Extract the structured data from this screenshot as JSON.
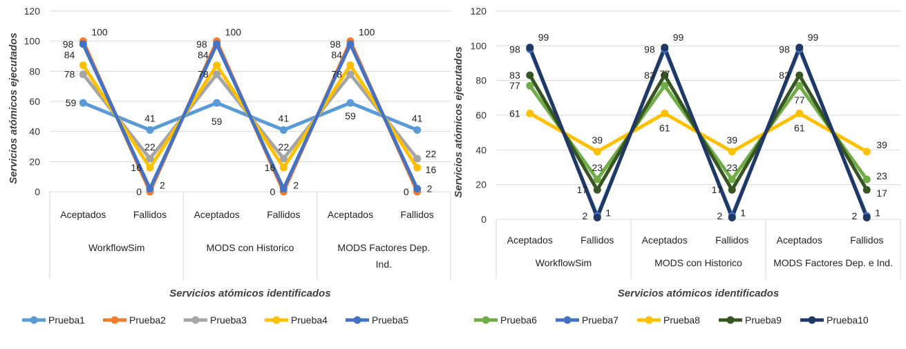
{
  "chart_data": [
    {
      "type": "line",
      "ylim": [
        0,
        120
      ],
      "yticks": [
        0,
        20,
        40,
        60,
        80,
        100,
        120
      ],
      "xlabel": "Servicios atómicos identificados",
      "ylabel": "Servicios atómicos ejecutados",
      "grid": true,
      "legend_position": "bottom",
      "categories": [
        "Aceptados",
        "Fallidos",
        "Aceptados",
        "Fallidos",
        "Aceptados",
        "Fallidos"
      ],
      "groups": [
        {
          "label_lines": [
            "WorkflowSim"
          ],
          "span": [
            0,
            1
          ]
        },
        {
          "label_lines": [
            "MODS con Historico"
          ],
          "span": [
            2,
            3
          ]
        },
        {
          "label_lines": [
            "MODS Factores Dep.",
            "Ind."
          ],
          "span": [
            4,
            5
          ]
        }
      ],
      "series": [
        {
          "name": "Prueba1",
          "color": "#5b9bd5",
          "values": [
            59,
            41,
            59,
            41,
            59,
            41
          ]
        },
        {
          "name": "Prueba2",
          "color": "#ed7d31",
          "values": [
            100,
            0,
            100,
            0,
            100,
            0
          ]
        },
        {
          "name": "Prueba3",
          "color": "#a5a5a5",
          "values": [
            78,
            22,
            78,
            22,
            78,
            22
          ]
        },
        {
          "name": "Prueba4",
          "color": "#ffc000",
          "values": [
            84,
            16,
            84,
            16,
            84,
            16
          ]
        },
        {
          "name": "Prueba5",
          "color": "#4472c4",
          "values": [
            98,
            2,
            98,
            2,
            98,
            2
          ]
        }
      ]
    },
    {
      "type": "line",
      "ylim": [
        0,
        120
      ],
      "yticks": [
        0,
        20,
        40,
        60,
        80,
        100,
        120
      ],
      "xlabel": "Servicios atómicos identificados",
      "ylabel": "Servicios atómicos ejecutados",
      "grid": true,
      "legend_position": "bottom",
      "categories": [
        "Aceptados",
        "Fallidos",
        "Aceptados",
        "Fallidos",
        "Aceptados",
        "Fallidos"
      ],
      "groups": [
        {
          "label_lines": [
            "WorkflowSim"
          ],
          "span": [
            0,
            1
          ]
        },
        {
          "label_lines": [
            "MODS con Historico"
          ],
          "span": [
            2,
            3
          ]
        },
        {
          "label_lines": [
            "MODS Factores Dep. e Ind."
          ],
          "span": [
            4,
            5
          ]
        }
      ],
      "series": [
        {
          "name": "Prueba6",
          "color": "#70ad47",
          "values": [
            77,
            23,
            77,
            23,
            77,
            23
          ]
        },
        {
          "name": "Prueba7",
          "color": "#4472c4",
          "values": [
            98,
            2,
            98,
            2,
            98,
            2
          ]
        },
        {
          "name": "Prueba8",
          "color": "#ffc000",
          "values": [
            61,
            39,
            61,
            39,
            61,
            39
          ]
        },
        {
          "name": "Prueba9",
          "color": "#375623",
          "values": [
            83,
            17,
            83,
            17,
            83,
            17
          ]
        },
        {
          "name": "Prueba10",
          "color": "#203864",
          "values": [
            99,
            1,
            99,
            1,
            99,
            1
          ]
        }
      ]
    }
  ]
}
